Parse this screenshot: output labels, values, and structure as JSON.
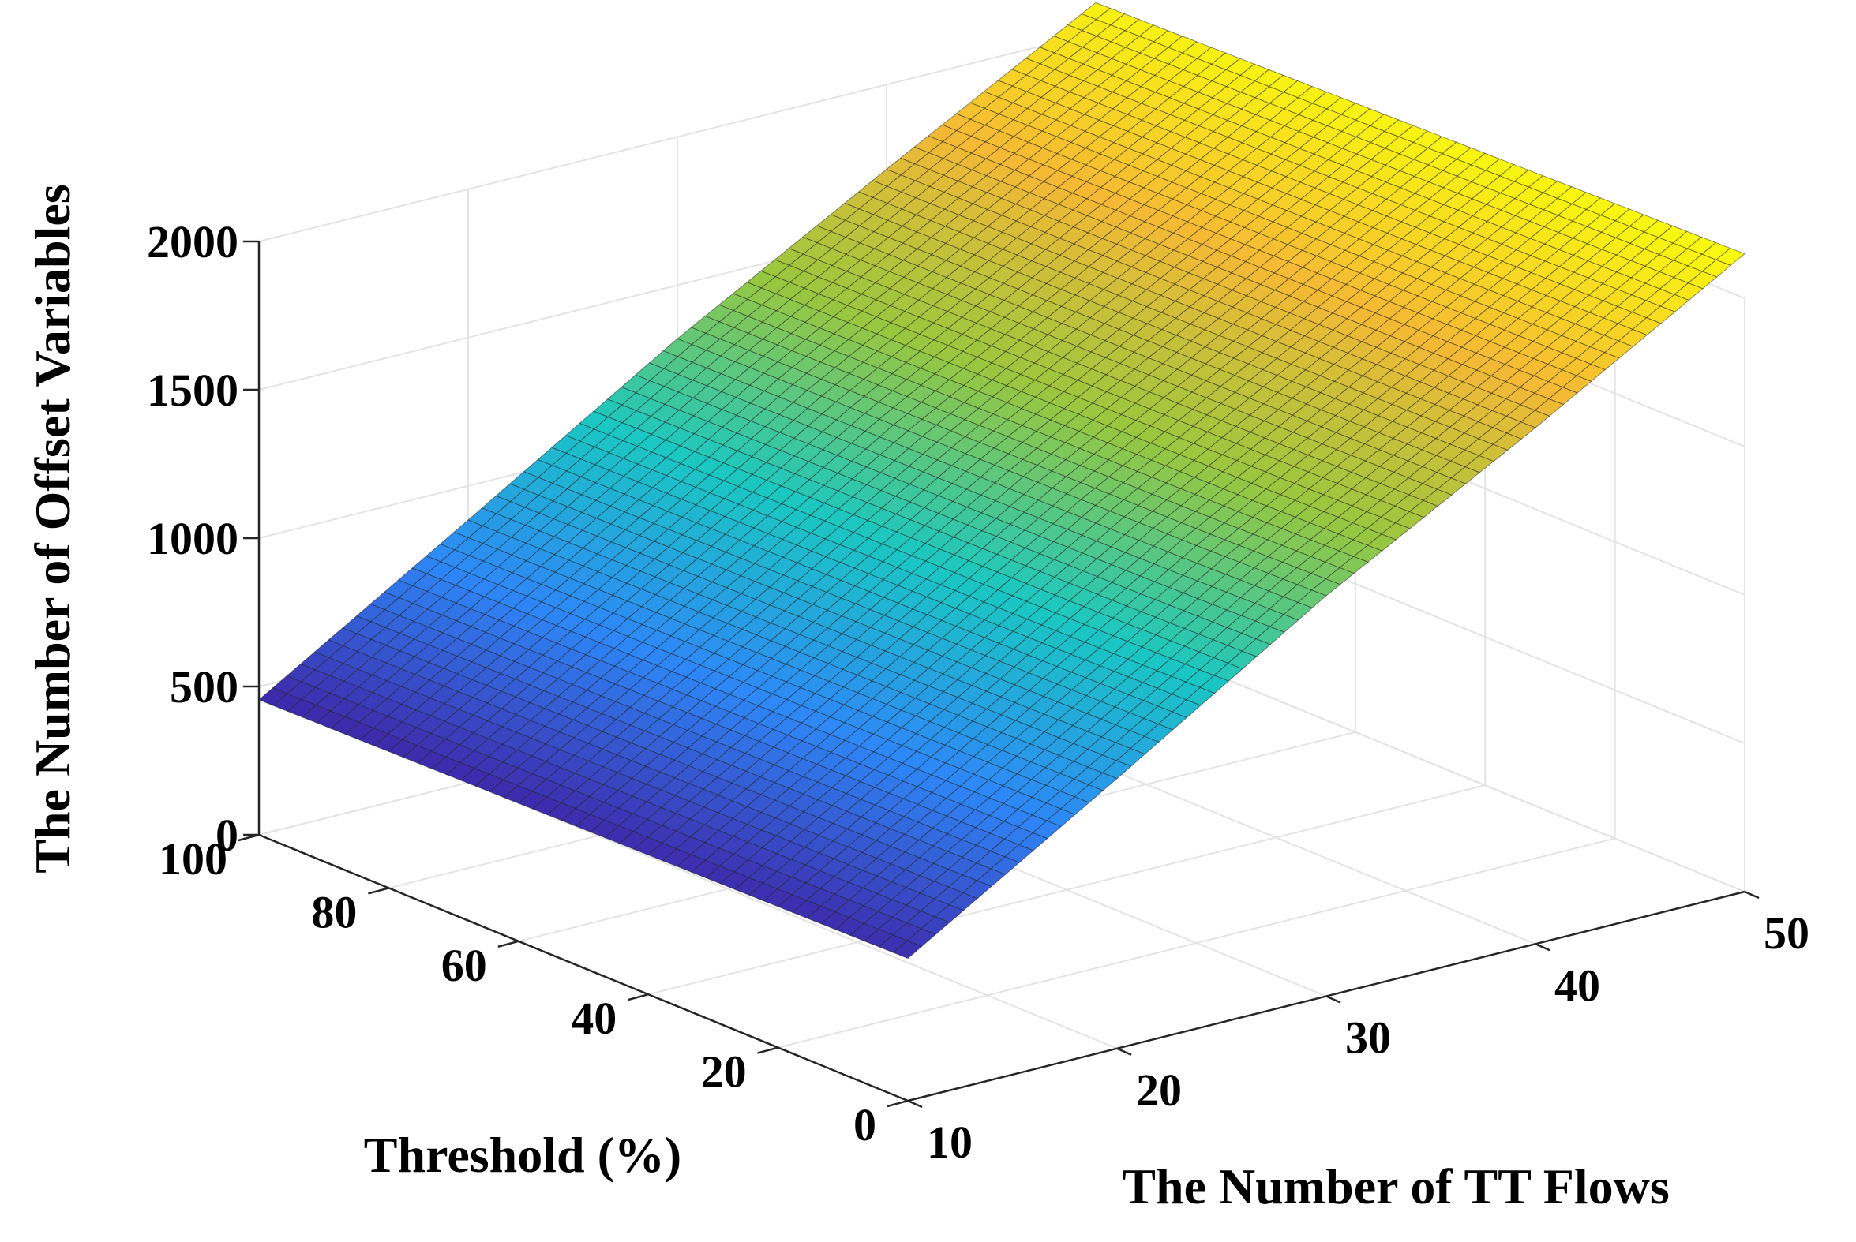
{
  "chart_data": {
    "type": "surface",
    "title": "",
    "xlabel": "The Number of TT Flows",
    "ylabel": "Threshold (%)",
    "zlabel": "The Number of Offset Variables",
    "xlim": [
      10,
      50
    ],
    "ylim": [
      0,
      100
    ],
    "zlim": [
      0,
      2000
    ],
    "x_ticks": [
      "10",
      "20",
      "30",
      "40",
      "50"
    ],
    "y_ticks": [
      "0",
      "20",
      "40",
      "60",
      "80",
      "100"
    ],
    "z_ticks": [
      "0",
      "500",
      "1000",
      "1500",
      "2000"
    ],
    "grid": true,
    "colormap": "parula",
    "colors": [
      "#3e26a8",
      "#2e87f7",
      "#1ac7c2",
      "#99c73f",
      "#f5b935",
      "#f9fb0e"
    ],
    "surface_z": {
      "x": [
        10,
        20,
        30,
        40,
        50
      ],
      "y": [
        0,
        20,
        40,
        60,
        80,
        100
      ],
      "values": [
        [
          480,
          910,
          1350,
          1740,
          2150
        ],
        [
          475,
          905,
          1340,
          1735,
          2140
        ],
        [
          470,
          900,
          1335,
          1730,
          2130
        ],
        [
          465,
          895,
          1330,
          1725,
          2120
        ],
        [
          460,
          890,
          1325,
          1720,
          2110
        ],
        [
          455,
          885,
          1320,
          1715,
          2100
        ]
      ]
    }
  }
}
